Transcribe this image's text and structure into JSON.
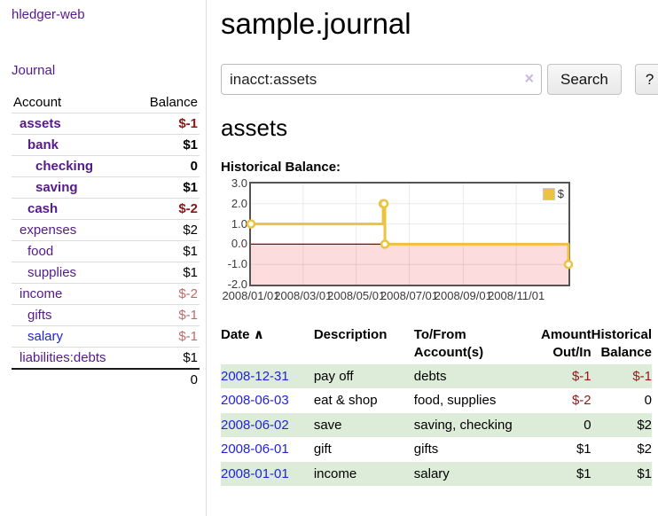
{
  "colors": {
    "link_purple": "#551a8b",
    "link_blue": "#2222dd",
    "negative_strong": "#8c1616",
    "negative_light": "#bf6a6a",
    "table_negative": "#8e1b1b",
    "stripe_green": "#ddecd8",
    "chart_gold": "#edc240",
    "plot_border": "#545454"
  },
  "sidebar": {
    "app_title": "hledger-web",
    "nav": {
      "journal_label": "Journal"
    },
    "table": {
      "account_header": "Account",
      "balance_header": "Balance",
      "accounts": [
        {
          "name": "assets",
          "balance": "$-1",
          "depth": 1,
          "row_class": "bold",
          "name_class": "",
          "bal_class": "neg-strong"
        },
        {
          "name": "bank",
          "balance": "$1",
          "depth": 2,
          "row_class": "bold",
          "name_class": "",
          "bal_class": ""
        },
        {
          "name": "checking",
          "balance": "0",
          "depth": 3,
          "row_class": "bold",
          "name_class": "",
          "bal_class": ""
        },
        {
          "name": "saving",
          "balance": "$1",
          "depth": 3,
          "row_class": "bold",
          "name_class": "",
          "bal_class": ""
        },
        {
          "name": "cash",
          "balance": "$-2",
          "depth": 2,
          "row_class": "bold",
          "name_class": "",
          "bal_class": "neg-strong"
        },
        {
          "name": "expenses",
          "balance": "$2",
          "depth": 1,
          "row_class": "",
          "name_class": "",
          "bal_class": ""
        },
        {
          "name": "food",
          "balance": "$1",
          "depth": 2,
          "row_class": "",
          "name_class": "",
          "bal_class": ""
        },
        {
          "name": "supplies",
          "balance": "$1",
          "depth": 2,
          "row_class": "",
          "name_class": "",
          "bal_class": ""
        },
        {
          "name": "income",
          "balance": "$-2",
          "depth": 1,
          "row_class": "",
          "name_class": "",
          "bal_class": "neg-light"
        },
        {
          "name": "gifts",
          "balance": "$-1",
          "depth": 2,
          "row_class": "",
          "name_class": "",
          "bal_class": "neg-light"
        },
        {
          "name": "salary",
          "balance": "$-1",
          "depth": 2,
          "row_class": "",
          "name_class": "blue",
          "bal_class": "neg-light"
        },
        {
          "name": "liabilities:debts",
          "balance": "$1",
          "depth": 1,
          "row_class": "",
          "name_class": "",
          "bal_class": ""
        }
      ],
      "total": "0"
    }
  },
  "main": {
    "title": "sample.journal",
    "search": {
      "value": "inacct:assets",
      "clear_icon": "×",
      "button_label": "Search",
      "help_label": "?"
    },
    "account_heading": "assets",
    "chart_label": "Historical Balance:"
  },
  "chart_data": {
    "type": "line",
    "step": true,
    "title": "Historical Balance",
    "series": [
      {
        "name": "$",
        "color": "#edc240",
        "points": [
          [
            "2008-01-01",
            1
          ],
          [
            "2008-06-01",
            2
          ],
          [
            "2008-06-02",
            2
          ],
          [
            "2008-06-03",
            0
          ],
          [
            "2008-12-31",
            -1
          ]
        ]
      }
    ],
    "x_range": [
      "2008-01-01",
      "2008-12-31"
    ],
    "x_ticks": [
      "2008/01/01",
      "2008/03/01",
      "2008/05/01",
      "2008/07/01",
      "2008/09/01",
      "2008/11/01"
    ],
    "y_ticks": [
      "3.0",
      "2.0",
      "1.0",
      "0.0",
      "-1.0",
      "-2.0"
    ],
    "ylim": [
      -2,
      3
    ],
    "grid": true,
    "legend_position": "top-right",
    "negative_region_color": "#fcdcdc",
    "zero_line_color": "#8b0000"
  },
  "register": {
    "headers": {
      "date": {
        "line1": "Date",
        "sort_icon": "∧"
      },
      "description": {
        "line1": "Description"
      },
      "accounts": {
        "line1": "To/From",
        "line2": "Account(s)"
      },
      "amount": {
        "line1": "Amount",
        "line2": "Out/In"
      },
      "balance": {
        "line1": "Historical",
        "line2": "Balance"
      }
    },
    "rows": [
      {
        "date": "2008-12-31",
        "description": "pay off",
        "accounts": "debts",
        "amount": "$-1",
        "balance": "$-1",
        "amount_class": "neg",
        "balance_class": "neg",
        "stripe": "green"
      },
      {
        "date": "2008-06-03",
        "description": "eat & shop",
        "accounts": "food, supplies",
        "amount": "$-2",
        "balance": "0",
        "amount_class": "neg",
        "balance_class": "",
        "stripe": ""
      },
      {
        "date": "2008-06-02",
        "description": "save",
        "accounts": "saving, checking",
        "amount": "0",
        "balance": "$2",
        "amount_class": "",
        "balance_class": "",
        "stripe": "green"
      },
      {
        "date": "2008-06-01",
        "description": "gift",
        "accounts": "gifts",
        "amount": "$1",
        "balance": "$2",
        "amount_class": "",
        "balance_class": "",
        "stripe": ""
      },
      {
        "date": "2008-01-01",
        "description": "income",
        "accounts": "salary",
        "amount": "$1",
        "balance": "$1",
        "amount_class": "",
        "balance_class": "",
        "stripe": "green"
      }
    ]
  }
}
